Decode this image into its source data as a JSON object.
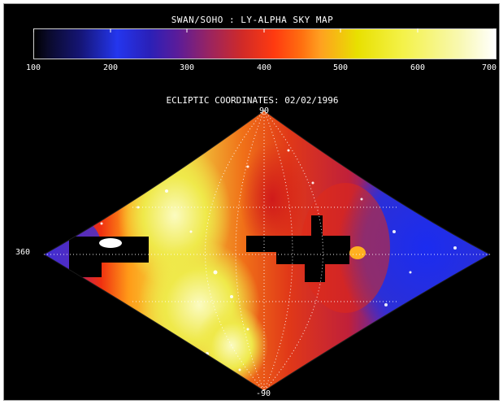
{
  "title": "SWAN/SOHO : LY-ALPHA SKY MAP",
  "colorbar": {
    "ticks": [
      "100",
      "200",
      "300",
      "400",
      "500",
      "600",
      "700"
    ]
  },
  "subtitle": "ECLIPTIC COORDINATES:   02/02/1996",
  "axes": {
    "top": "90",
    "bottom": "-90",
    "left": "360"
  },
  "colors": {
    "background": "#000000",
    "low": "#2436ee",
    "mid": "#d02a28",
    "high": "#f4f24a",
    "max": "#ffffff"
  }
}
